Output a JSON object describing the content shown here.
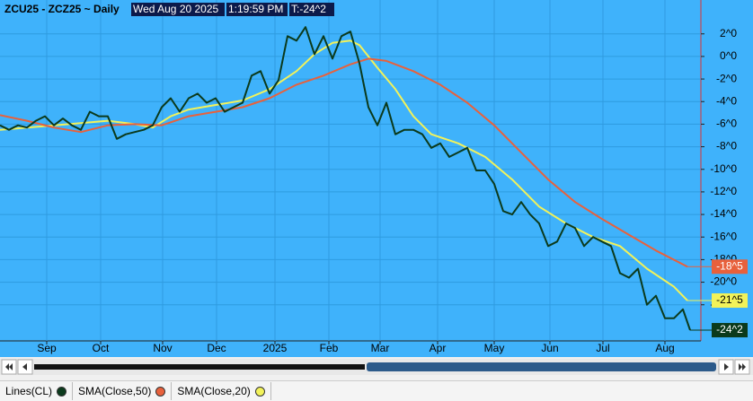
{
  "chart_data": {
    "type": "line",
    "title": "ZCU25 - ZCZ25 ~ Daily",
    "date": "Wed Aug 20 2025",
    "time": "1:19:59 PM",
    "last": "T:-24^2",
    "grid": true,
    "xlim": [
      0,
      78
    ],
    "ylim": [
      -25.2,
      5
    ],
    "xticks": [
      {
        "value": 5.2,
        "label": "Sep"
      },
      {
        "value": 11.2,
        "label": "Oct"
      },
      {
        "value": 18.1,
        "label": "Nov"
      },
      {
        "value": 24.1,
        "label": "Dec"
      },
      {
        "value": 30.6,
        "label": "2025"
      },
      {
        "value": 36.6,
        "label": "Feb"
      },
      {
        "value": 42.3,
        "label": "Mar"
      },
      {
        "value": 48.7,
        "label": "Apr"
      },
      {
        "value": 55,
        "label": "May"
      },
      {
        "value": 61.2,
        "label": "Jun"
      },
      {
        "value": 67.1,
        "label": "Jul"
      },
      {
        "value": 74,
        "label": "Aug"
      }
    ],
    "yticks": [
      {
        "value": 2,
        "label": "2^0"
      },
      {
        "value": 0,
        "label": "0^0"
      },
      {
        "value": -2,
        "label": "-2^0"
      },
      {
        "value": -4,
        "label": "-4^0"
      },
      {
        "value": -6,
        "label": "-6^0"
      },
      {
        "value": -8,
        "label": "-8^0"
      },
      {
        "value": -10,
        "label": "-10^0"
      },
      {
        "value": -12,
        "label": "-12^0"
      },
      {
        "value": -14,
        "label": "-14^0"
      },
      {
        "value": -16,
        "label": "-16^0"
      },
      {
        "value": -18,
        "label": "-18^0"
      },
      {
        "value": -20,
        "label": "-20^0"
      },
      {
        "value": -22,
        "label": "-22^0"
      }
    ],
    "series": [
      {
        "name": "Lines(CL)",
        "color": "#0b3a1c",
        "text_color": "#ffffff",
        "last_label": "-24^2",
        "x": [
          0,
          1,
          2,
          3,
          4,
          5,
          6,
          7,
          8,
          9,
          10,
          11,
          12,
          13,
          14,
          15,
          16,
          17,
          18,
          19,
          20,
          21,
          22,
          23,
          24,
          25,
          26,
          27,
          28,
          29,
          30,
          31,
          32,
          33,
          34,
          35,
          36,
          37,
          38,
          39,
          40,
          41,
          42,
          43,
          44,
          45,
          46,
          47,
          48,
          49,
          50,
          51,
          52,
          53,
          54,
          55,
          56,
          57,
          58,
          59,
          60,
          61,
          62,
          63,
          64,
          65,
          66,
          67,
          68,
          69,
          70,
          71,
          72,
          73,
          74,
          75,
          76,
          76.8
        ],
        "values": [
          -6.1,
          -6.5,
          -6.1,
          -6.3,
          -5.7,
          -5.3,
          -6.1,
          -5.5,
          -6.1,
          -6.5,
          -4.9,
          -5.3,
          -5.3,
          -7.3,
          -6.9,
          -6.7,
          -6.5,
          -6.1,
          -4.5,
          -3.7,
          -4.9,
          -3.7,
          -3.3,
          -4.1,
          -3.7,
          -4.9,
          -4.5,
          -4.1,
          -1.7,
          -1.3,
          -3.3,
          -2.1,
          1.8,
          1.4,
          2.6,
          0.2,
          1.8,
          -0.2,
          1.8,
          2.2,
          -0.6,
          -4.5,
          -6.1,
          -4.1,
          -6.9,
          -6.5,
          -6.5,
          -6.9,
          -8.1,
          -7.7,
          -8.9,
          -8.5,
          -8.1,
          -10.1,
          -10.1,
          -11.3,
          -13.7,
          -14.0,
          -12.9,
          -14.0,
          -14.8,
          -16.8,
          -16.4,
          -14.8,
          -15.2,
          -16.8,
          -16.0,
          -16.4,
          -16.8,
          -19.2,
          -19.6,
          -18.8,
          -22.0,
          -21.2,
          -23.2,
          -23.2,
          -22.4,
          -24.25
        ]
      },
      {
        "name": "SMA(Close,50)",
        "color": "#e8613c",
        "text_color": "#ffffff",
        "last_label": "-18^5",
        "x": [
          0,
          3,
          6,
          9,
          12,
          15,
          18,
          21,
          24,
          27,
          30,
          33,
          36,
          39,
          41,
          43,
          46,
          49,
          52,
          55,
          58,
          61,
          64,
          67,
          70,
          73,
          76.5
        ],
        "values": [
          -5.2,
          -5.7,
          -6.3,
          -6.7,
          -6.1,
          -6.0,
          -6.1,
          -5.3,
          -4.9,
          -4.5,
          -3.7,
          -2.5,
          -1.7,
          -0.7,
          -0.2,
          -0.4,
          -1.3,
          -2.5,
          -4.1,
          -6.1,
          -8.5,
          -10.9,
          -12.9,
          -14.4,
          -15.8,
          -17.2,
          -18.625
        ]
      },
      {
        "name": "SMA(Close,20)",
        "color": "#f2f25a",
        "text_color": "#000000",
        "last_label": "-21^5",
        "x": [
          0,
          3,
          6,
          9,
          12,
          15,
          17,
          19,
          21,
          24,
          27,
          30,
          33,
          35,
          37,
          39,
          40,
          42,
          44,
          46,
          48,
          51,
          54,
          57,
          60,
          63,
          66,
          69,
          72,
          75,
          76.5
        ],
        "values": [
          -6.5,
          -6.3,
          -6.1,
          -5.9,
          -5.7,
          -6.0,
          -6.3,
          -5.3,
          -4.7,
          -4.3,
          -3.9,
          -2.9,
          -1.3,
          0.2,
          1.2,
          1.4,
          1.0,
          -1.0,
          -2.9,
          -5.3,
          -6.9,
          -7.7,
          -8.9,
          -10.9,
          -13.3,
          -14.8,
          -16.0,
          -16.8,
          -18.8,
          -20.4,
          -21.625
        ]
      }
    ]
  }
}
